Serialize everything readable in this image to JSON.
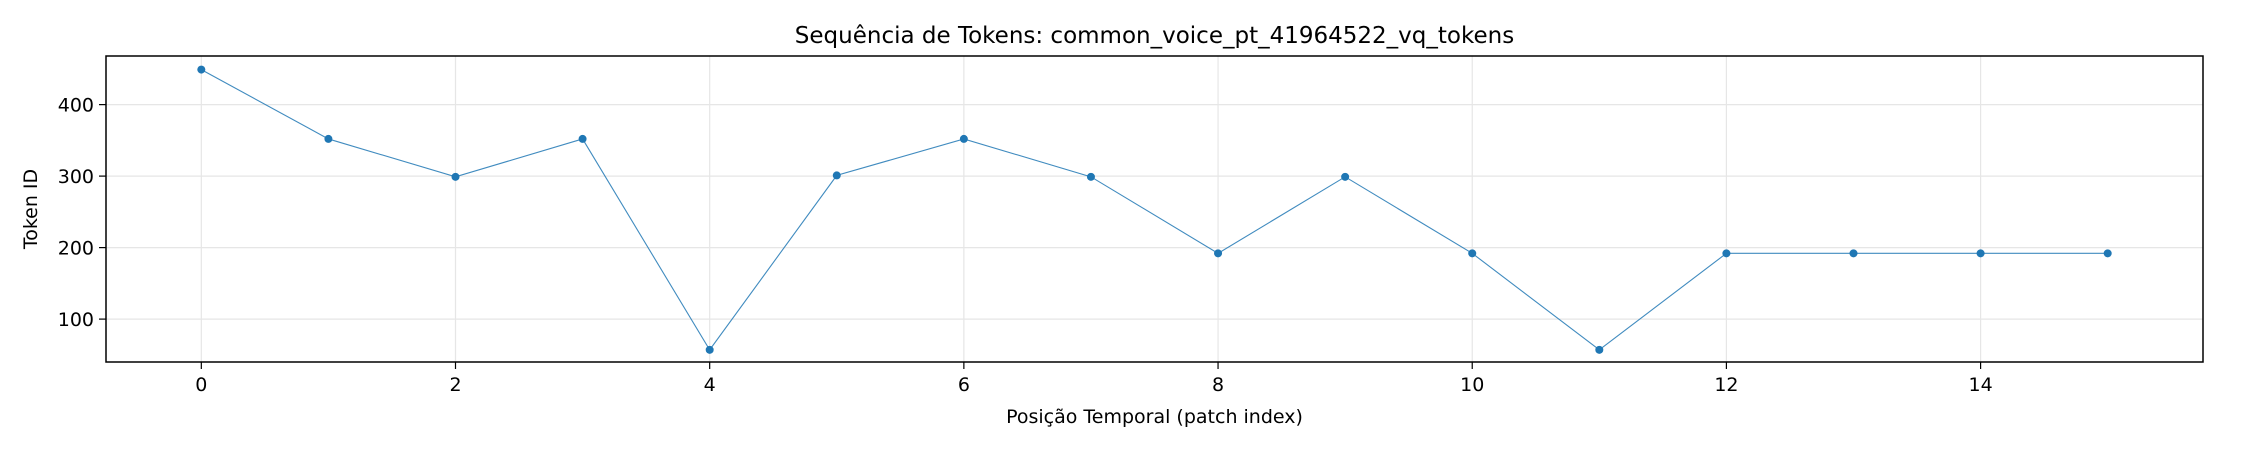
{
  "chart_data": {
    "type": "line",
    "title": "Sequência de Tokens: common_voice_pt_41964522_vq_tokens",
    "xlabel": "Posição Temporal (patch index)",
    "ylabel": "Token ID",
    "x": [
      0,
      1,
      2,
      3,
      4,
      5,
      6,
      7,
      8,
      9,
      10,
      11,
      12,
      13,
      14,
      15
    ],
    "series": [
      {
        "values": [
          449,
          352,
          299,
          352,
          57,
          301,
          352,
          299,
          192,
          299,
          192,
          57,
          192,
          192,
          192,
          192
        ]
      }
    ],
    "xlim": [
      -0.75,
      15.75
    ],
    "ylim": [
      40,
      468
    ],
    "xticks": [
      0,
      2,
      4,
      6,
      8,
      10,
      12,
      14
    ],
    "yticks": [
      100,
      200,
      300,
      400
    ],
    "grid": true,
    "line_color": "#1f77b4",
    "grid_color": "#e6e6e6"
  }
}
